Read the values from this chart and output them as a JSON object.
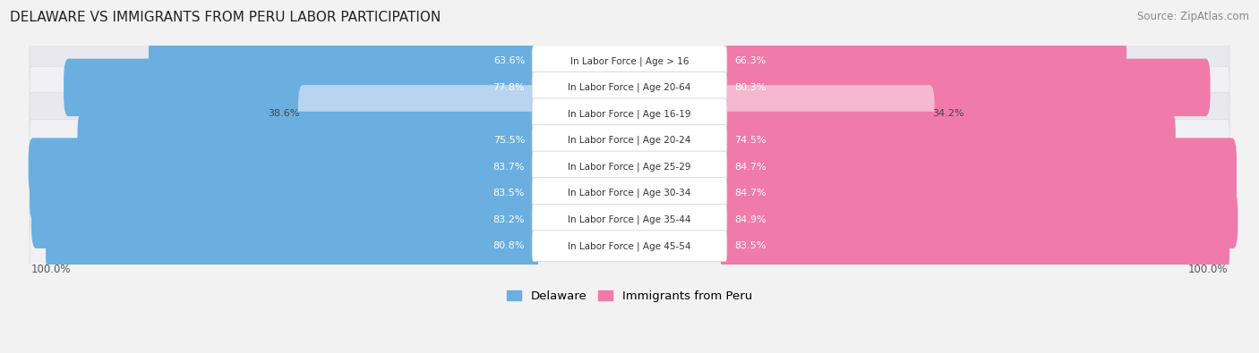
{
  "title": "DELAWARE VS IMMIGRANTS FROM PERU LABOR PARTICIPATION",
  "source": "Source: ZipAtlas.com",
  "categories": [
    "In Labor Force | Age > 16",
    "In Labor Force | Age 20-64",
    "In Labor Force | Age 16-19",
    "In Labor Force | Age 20-24",
    "In Labor Force | Age 25-29",
    "In Labor Force | Age 30-34",
    "In Labor Force | Age 35-44",
    "In Labor Force | Age 45-54"
  ],
  "delaware_values": [
    63.6,
    77.8,
    38.6,
    75.5,
    83.7,
    83.5,
    83.2,
    80.8
  ],
  "peru_values": [
    66.3,
    80.3,
    34.2,
    74.5,
    84.7,
    84.7,
    84.9,
    83.5
  ],
  "delaware_color": "#6aafe0",
  "delaware_light_color": "#b8d4ee",
  "peru_color": "#f07bab",
  "peru_light_color": "#f5b8d0",
  "bg_color": "#f2f2f2",
  "row_bg_even": "#ffffff",
  "row_bg_odd": "#e8e8e8",
  "max_value": 100.0,
  "legend_labels": [
    "Delaware",
    "Immigrants from Peru"
  ]
}
